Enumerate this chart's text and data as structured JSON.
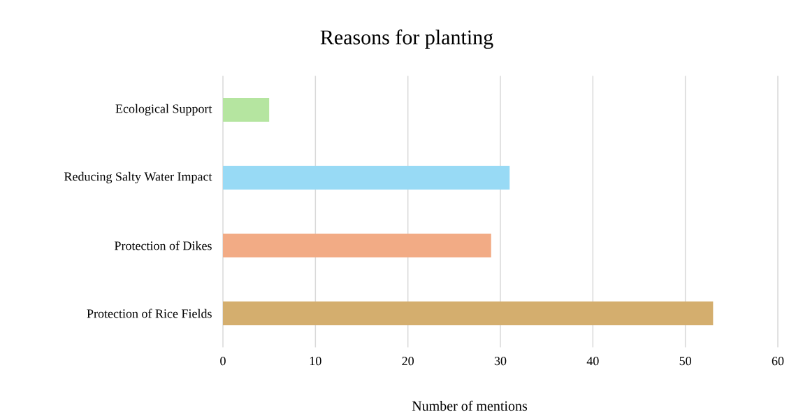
{
  "chart_data": {
    "type": "bar",
    "orientation": "horizontal",
    "title": "Reasons for planting",
    "xlabel": "Number of mentions",
    "categories": [
      "Ecological Support",
      "Reducing Salty Water Impact",
      "Protection of Dikes",
      "Protection of Rice Fields"
    ],
    "values": [
      5,
      31,
      29,
      53
    ],
    "colors": [
      "#b5e5a0",
      "#98daf5",
      "#f2ab85",
      "#d4ae6e"
    ],
    "xlim": [
      0,
      60
    ],
    "xticks": [
      0,
      10,
      20,
      30,
      40,
      50,
      60
    ],
    "grid": "x"
  }
}
